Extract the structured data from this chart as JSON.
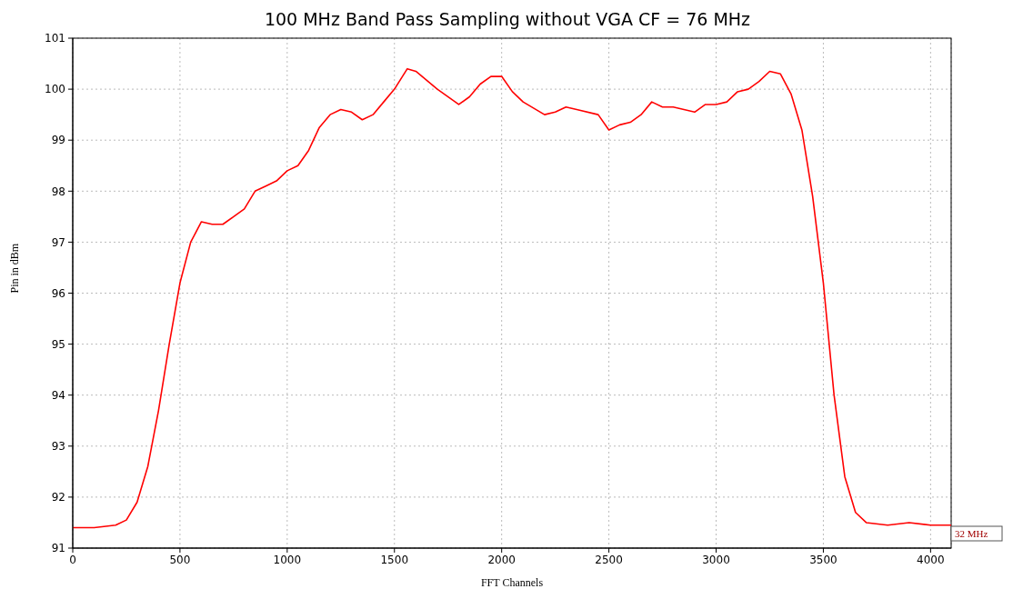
{
  "chart_data": {
    "type": "line",
    "title": "100 MHz Band Pass Sampling without VGA CF = 76 MHz",
    "xlabel": "FFT Channels",
    "ylabel": "Pin in dBm",
    "annotations": [
      "32 MHz"
    ],
    "x": [
      0,
      100,
      200,
      250,
      300,
      350,
      400,
      450,
      500,
      550,
      600,
      650,
      700,
      750,
      800,
      850,
      900,
      950,
      1000,
      1050,
      1100,
      1150,
      1200,
      1250,
      1300,
      1350,
      1400,
      1450,
      1500,
      1560,
      1600,
      1700,
      1800,
      1850,
      1900,
      1950,
      2000,
      2050,
      2100,
      2200,
      2250,
      2300,
      2350,
      2450,
      2500,
      2550,
      2600,
      2650,
      2700,
      2750,
      2800,
      2850,
      2900,
      2950,
      3000,
      3050,
      3100,
      3150,
      3200,
      3250,
      3300,
      3350,
      3400,
      3450,
      3500,
      3550,
      3600,
      3650,
      3700,
      3800,
      3900,
      4000,
      4096
    ],
    "series": [
      {
        "color": "#ff0000",
        "values": [
          91.4,
          91.4,
          91.45,
          91.55,
          91.9,
          92.6,
          93.7,
          95.0,
          96.2,
          97.0,
          97.4,
          97.35,
          97.35,
          97.5,
          97.65,
          98.0,
          98.1,
          98.2,
          98.4,
          98.5,
          98.8,
          99.25,
          99.5,
          99.6,
          99.55,
          99.4,
          99.5,
          99.75,
          100.0,
          100.4,
          100.35,
          100.0,
          99.7,
          99.85,
          100.1,
          100.25,
          100.25,
          99.95,
          99.75,
          99.5,
          99.55,
          99.65,
          99.6,
          99.5,
          99.2,
          99.3,
          99.35,
          99.5,
          99.75,
          99.65,
          99.65,
          99.6,
          99.55,
          99.7,
          99.7,
          99.75,
          99.95,
          100.0,
          100.15,
          100.35,
          100.3,
          99.9,
          99.2,
          97.9,
          96.2,
          94.0,
          92.4,
          91.7,
          91.5,
          91.45,
          91.5,
          91.45,
          91.45
        ]
      }
    ],
    "xlim": [
      0,
      4096
    ],
    "xticks": [
      0,
      500,
      1000,
      1500,
      2000,
      2500,
      3000,
      3500,
      4000
    ],
    "ylim": [
      91,
      101
    ],
    "yticks": [
      91,
      92,
      93,
      94,
      95,
      96,
      97,
      98,
      99,
      100,
      101
    ],
    "grid": true,
    "marker": "none",
    "line_style": "solid"
  }
}
